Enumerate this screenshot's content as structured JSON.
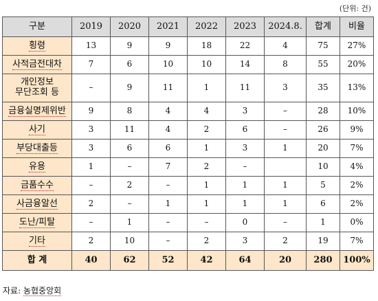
{
  "unit_note": "(단위: 건)",
  "columns": [
    "구분",
    "2019",
    "2020",
    "2021",
    "2022",
    "2023",
    "2024.8.",
    "합계",
    "비율"
  ],
  "rows": [
    {
      "label": "횡령",
      "values": [
        "13",
        "9",
        "9",
        "18",
        "22",
        "4",
        "75",
        "27%"
      ]
    },
    {
      "label": "사적금전대차",
      "values": [
        "7",
        "6",
        "10",
        "10",
        "14",
        "8",
        "55",
        "20%"
      ]
    },
    {
      "label_lines": [
        "개인정보",
        "무단조회 등"
      ],
      "values": [
        "–",
        "9",
        "11",
        "1",
        "11",
        "3",
        "35",
        "13%"
      ]
    },
    {
      "label": "금융실명제위반",
      "values": [
        "9",
        "8",
        "4",
        "4",
        "3",
        "–",
        "28",
        "10%"
      ]
    },
    {
      "label": "사기",
      "values": [
        "3",
        "11",
        "4",
        "2",
        "6",
        "–",
        "26",
        "9%"
      ]
    },
    {
      "label": "부당대출등",
      "values": [
        "3",
        "6",
        "6",
        "1",
        "3",
        "1",
        "20",
        "7%"
      ]
    },
    {
      "label": "유용",
      "values": [
        "1",
        "–",
        "7",
        "2",
        "–",
        "",
        "10",
        "4%"
      ]
    },
    {
      "label": "금품수수",
      "values": [
        "–",
        "2",
        "–",
        "1",
        "1",
        "1",
        "5",
        "2%"
      ]
    },
    {
      "label": "사금융알선",
      "values": [
        "2",
        "–",
        "1",
        "1",
        "1",
        "1",
        "6",
        "2%"
      ]
    },
    {
      "label": "도난/피탈",
      "values": [
        "–",
        "1",
        "–",
        "–",
        "0",
        "–",
        "1",
        "0%"
      ]
    },
    {
      "label": "기타",
      "values": [
        "2",
        "10",
        "–",
        "2",
        "3",
        "2",
        "19",
        "7%"
      ]
    }
  ],
  "total": {
    "label": "합 계",
    "values": [
      "40",
      "62",
      "52",
      "42",
      "64",
      "20",
      "280",
      "100%"
    ]
  },
  "source": {
    "prefix": "자료: ",
    "org": "농협중앙회"
  }
}
